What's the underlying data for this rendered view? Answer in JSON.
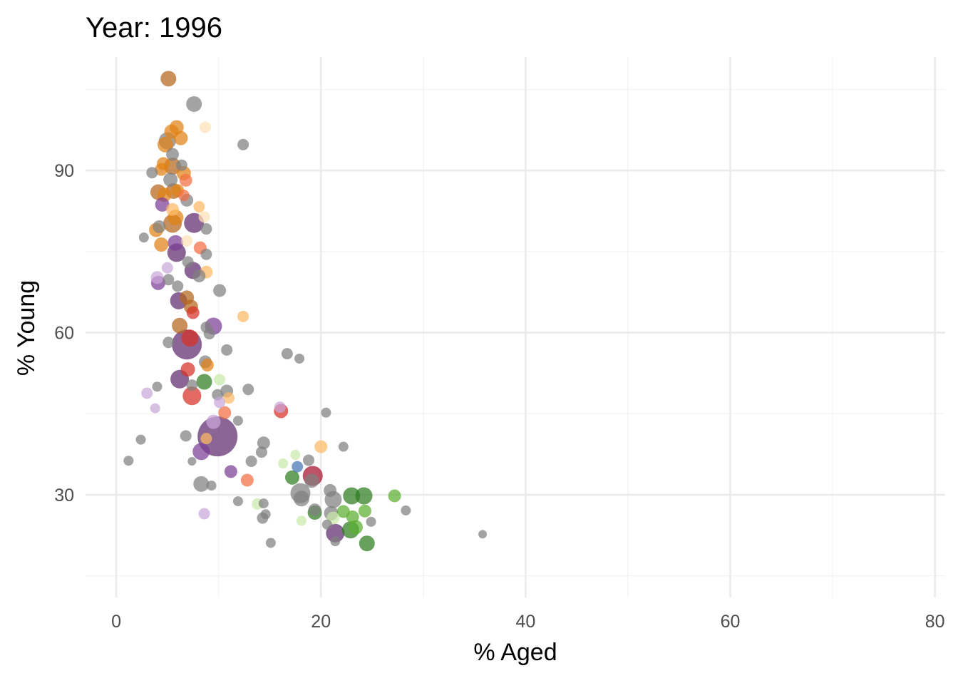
{
  "chart_data": {
    "type": "scatter",
    "title": "Year: 1996",
    "xlabel": "% Aged",
    "ylabel": "% Young",
    "xlim": [
      -3,
      81
    ],
    "ylim": [
      11,
      111
    ],
    "x_ticks": [
      0,
      20,
      40,
      60,
      80
    ],
    "x_tick_labels": [
      "0",
      "20",
      "40",
      "60",
      "80"
    ],
    "y_ticks": [
      30,
      60,
      90
    ],
    "y_tick_labels": [
      "30",
      "60",
      "90"
    ],
    "x_minor": [
      10,
      30,
      50,
      70
    ],
    "y_minor": [
      15,
      45,
      75,
      105
    ],
    "grid": true,
    "legend": "none",
    "colors": {
      "gray": "#7f7f7f",
      "dark_purple": "#5e2a6e",
      "purple": "#7b3f95",
      "light_purple": "#c9a6d9",
      "dark_orange": "#b5651d",
      "orange": "#e08214",
      "light_orange": "#fdb863",
      "pale_orange": "#fee0b6",
      "red": "#d73027",
      "crimson": "#a50f2d",
      "salmon": "#f46d43",
      "dark_green": "#2d7d1e",
      "green": "#5aae2f",
      "light_green": "#c7e9a9",
      "blue": "#4575b4"
    },
    "points": [
      {
        "x": 5.1,
        "y": 107.0,
        "size": 11,
        "color": "dark_orange"
      },
      {
        "x": 7.6,
        "y": 102.3,
        "size": 11,
        "color": "gray"
      },
      {
        "x": 8.7,
        "y": 98.0,
        "size": 8,
        "color": "pale_orange"
      },
      {
        "x": 5.9,
        "y": 98.0,
        "size": 10,
        "color": "orange"
      },
      {
        "x": 5.4,
        "y": 97.2,
        "size": 10,
        "color": "orange"
      },
      {
        "x": 6.3,
        "y": 96.0,
        "size": 10,
        "color": "orange"
      },
      {
        "x": 12.4,
        "y": 94.8,
        "size": 8,
        "color": "gray"
      },
      {
        "x": 5.0,
        "y": 95.5,
        "size": 12,
        "color": "gray"
      },
      {
        "x": 4.8,
        "y": 94.8,
        "size": 11,
        "color": "orange"
      },
      {
        "x": 5.5,
        "y": 93.0,
        "size": 9,
        "color": "gray"
      },
      {
        "x": 4.6,
        "y": 91.3,
        "size": 9,
        "color": "orange"
      },
      {
        "x": 6.4,
        "y": 91.0,
        "size": 8,
        "color": "gray"
      },
      {
        "x": 5.5,
        "y": 90.8,
        "size": 12,
        "color": "dark_orange"
      },
      {
        "x": 4.4,
        "y": 90.2,
        "size": 9,
        "color": "orange"
      },
      {
        "x": 6.6,
        "y": 89.5,
        "size": 10,
        "color": "orange"
      },
      {
        "x": 3.5,
        "y": 89.6,
        "size": 8,
        "color": "gray"
      },
      {
        "x": 5.3,
        "y": 88.3,
        "size": 10,
        "color": "gray"
      },
      {
        "x": 6.8,
        "y": 88.2,
        "size": 9,
        "color": "salmon"
      },
      {
        "x": 4.1,
        "y": 86.0,
        "size": 11,
        "color": "dark_orange"
      },
      {
        "x": 5.6,
        "y": 86.2,
        "size": 11,
        "color": "dark_orange"
      },
      {
        "x": 4.7,
        "y": 85.5,
        "size": 10,
        "color": "orange"
      },
      {
        "x": 6.0,
        "y": 86.3,
        "size": 9,
        "color": "orange"
      },
      {
        "x": 6.6,
        "y": 85.4,
        "size": 8,
        "color": "salmon"
      },
      {
        "x": 6.9,
        "y": 84.5,
        "size": 9,
        "color": "gray"
      },
      {
        "x": 4.5,
        "y": 83.7,
        "size": 10,
        "color": "purple"
      },
      {
        "x": 8.1,
        "y": 83.3,
        "size": 8,
        "color": "light_orange"
      },
      {
        "x": 5.5,
        "y": 82.8,
        "size": 9,
        "color": "light_orange"
      },
      {
        "x": 5.8,
        "y": 81.3,
        "size": 11,
        "color": "orange"
      },
      {
        "x": 8.6,
        "y": 81.4,
        "size": 8,
        "color": "pale_orange"
      },
      {
        "x": 5.5,
        "y": 80.2,
        "size": 13,
        "color": "dark_orange"
      },
      {
        "x": 7.6,
        "y": 80.3,
        "size": 14,
        "color": "dark_purple"
      },
      {
        "x": 4.2,
        "y": 79.6,
        "size": 9,
        "color": "gray"
      },
      {
        "x": 8.8,
        "y": 79.2,
        "size": 8,
        "color": "gray"
      },
      {
        "x": 3.9,
        "y": 79.0,
        "size": 10,
        "color": "orange"
      },
      {
        "x": 2.7,
        "y": 77.6,
        "size": 7,
        "color": "gray"
      },
      {
        "x": 6.9,
        "y": 77.0,
        "size": 8,
        "color": "pale_orange"
      },
      {
        "x": 4.4,
        "y": 76.3,
        "size": 10,
        "color": "orange"
      },
      {
        "x": 5.8,
        "y": 76.6,
        "size": 11,
        "color": "purple"
      },
      {
        "x": 8.2,
        "y": 75.7,
        "size": 9,
        "color": "salmon"
      },
      {
        "x": 5.9,
        "y": 74.8,
        "size": 13,
        "color": "dark_purple"
      },
      {
        "x": 8.8,
        "y": 74.5,
        "size": 8,
        "color": "gray"
      },
      {
        "x": 7.0,
        "y": 73.1,
        "size": 8,
        "color": "gray"
      },
      {
        "x": 5.0,
        "y": 72.0,
        "size": 8,
        "color": "light_purple"
      },
      {
        "x": 7.5,
        "y": 71.5,
        "size": 12,
        "color": "dark_purple"
      },
      {
        "x": 8.8,
        "y": 71.2,
        "size": 9,
        "color": "light_orange"
      },
      {
        "x": 8.1,
        "y": 70.5,
        "size": 9,
        "color": "gray"
      },
      {
        "x": 4.0,
        "y": 70.2,
        "size": 9,
        "color": "light_purple"
      },
      {
        "x": 5.1,
        "y": 69.8,
        "size": 8,
        "color": "gray"
      },
      {
        "x": 4.1,
        "y": 69.2,
        "size": 10,
        "color": "purple"
      },
      {
        "x": 6.0,
        "y": 68.6,
        "size": 8,
        "color": "gray"
      },
      {
        "x": 10.1,
        "y": 67.8,
        "size": 9,
        "color": "gray"
      },
      {
        "x": 6.9,
        "y": 66.5,
        "size": 10,
        "color": "dark_orange"
      },
      {
        "x": 6.1,
        "y": 65.9,
        "size": 12,
        "color": "dark_purple"
      },
      {
        "x": 7.3,
        "y": 64.8,
        "size": 10,
        "color": "dark_orange"
      },
      {
        "x": 7.5,
        "y": 63.7,
        "size": 9,
        "color": "red"
      },
      {
        "x": 12.4,
        "y": 63.0,
        "size": 8,
        "color": "light_orange"
      },
      {
        "x": 6.2,
        "y": 61.3,
        "size": 11,
        "color": "dark_orange"
      },
      {
        "x": 9.5,
        "y": 61.2,
        "size": 12,
        "color": "purple"
      },
      {
        "x": 8.8,
        "y": 61.0,
        "size": 8,
        "color": "gray"
      },
      {
        "x": 9.1,
        "y": 59.8,
        "size": 8,
        "color": "gray"
      },
      {
        "x": 6.9,
        "y": 57.8,
        "size": 21,
        "color": "dark_purple"
      },
      {
        "x": 7.2,
        "y": 59.0,
        "size": 12,
        "color": "red"
      },
      {
        "x": 5.1,
        "y": 58.2,
        "size": 8,
        "color": "gray"
      },
      {
        "x": 10.8,
        "y": 56.8,
        "size": 8,
        "color": "gray"
      },
      {
        "x": 16.7,
        "y": 56.1,
        "size": 8,
        "color": "gray"
      },
      {
        "x": 17.9,
        "y": 55.2,
        "size": 7,
        "color": "gray"
      },
      {
        "x": 8.7,
        "y": 54.6,
        "size": 9,
        "color": "gray"
      },
      {
        "x": 8.9,
        "y": 54.0,
        "size": 9,
        "color": "orange"
      },
      {
        "x": 7.0,
        "y": 53.2,
        "size": 10,
        "color": "red"
      },
      {
        "x": 6.2,
        "y": 51.4,
        "size": 13,
        "color": "dark_purple"
      },
      {
        "x": 8.6,
        "y": 50.9,
        "size": 11,
        "color": "dark_green"
      },
      {
        "x": 10.1,
        "y": 51.3,
        "size": 8,
        "color": "light_green"
      },
      {
        "x": 4.0,
        "y": 50.0,
        "size": 7,
        "color": "gray"
      },
      {
        "x": 7.4,
        "y": 50.3,
        "size": 8,
        "color": "gray"
      },
      {
        "x": 12.9,
        "y": 49.5,
        "size": 8,
        "color": "gray"
      },
      {
        "x": 10.8,
        "y": 49.2,
        "size": 9,
        "color": "gray"
      },
      {
        "x": 3.0,
        "y": 48.8,
        "size": 8,
        "color": "light_purple"
      },
      {
        "x": 7.4,
        "y": 48.3,
        "size": 13,
        "color": "red"
      },
      {
        "x": 9.9,
        "y": 48.5,
        "size": 8,
        "color": "gray"
      },
      {
        "x": 11.0,
        "y": 47.9,
        "size": 8,
        "color": "light_orange"
      },
      {
        "x": 10.1,
        "y": 47.1,
        "size": 8,
        "color": "light_purple"
      },
      {
        "x": 16.0,
        "y": 46.2,
        "size": 8,
        "color": "light_purple"
      },
      {
        "x": 3.8,
        "y": 46.0,
        "size": 7,
        "color": "light_purple"
      },
      {
        "x": 16.1,
        "y": 45.5,
        "size": 10,
        "color": "red"
      },
      {
        "x": 10.6,
        "y": 45.2,
        "size": 9,
        "color": "salmon"
      },
      {
        "x": 20.5,
        "y": 45.2,
        "size": 7,
        "color": "gray"
      },
      {
        "x": 11.9,
        "y": 43.7,
        "size": 7,
        "color": "gray"
      },
      {
        "x": 9.9,
        "y": 40.8,
        "size": 28,
        "color": "dark_purple"
      },
      {
        "x": 9.5,
        "y": 43.5,
        "size": 10,
        "color": "light_purple"
      },
      {
        "x": 6.8,
        "y": 40.9,
        "size": 8,
        "color": "gray"
      },
      {
        "x": 8.8,
        "y": 40.4,
        "size": 8,
        "color": "light_orange"
      },
      {
        "x": 2.4,
        "y": 40.2,
        "size": 7,
        "color": "gray"
      },
      {
        "x": 14.4,
        "y": 39.6,
        "size": 9,
        "color": "gray"
      },
      {
        "x": 22.2,
        "y": 38.9,
        "size": 7,
        "color": "gray"
      },
      {
        "x": 20.0,
        "y": 38.9,
        "size": 9,
        "color": "light_orange"
      },
      {
        "x": 8.3,
        "y": 38.0,
        "size": 12,
        "color": "purple"
      },
      {
        "x": 14.2,
        "y": 37.9,
        "size": 8,
        "color": "gray"
      },
      {
        "x": 17.5,
        "y": 37.4,
        "size": 7,
        "color": "light_green"
      },
      {
        "x": 1.2,
        "y": 36.3,
        "size": 7,
        "color": "gray"
      },
      {
        "x": 7.4,
        "y": 36.2,
        "size": 6,
        "color": "gray"
      },
      {
        "x": 13.2,
        "y": 36.2,
        "size": 8,
        "color": "gray"
      },
      {
        "x": 18.8,
        "y": 36.4,
        "size": 8,
        "color": "gray"
      },
      {
        "x": 16.3,
        "y": 35.8,
        "size": 7,
        "color": "light_green"
      },
      {
        "x": 17.7,
        "y": 35.2,
        "size": 8,
        "color": "blue"
      },
      {
        "x": 11.2,
        "y": 34.3,
        "size": 9,
        "color": "purple"
      },
      {
        "x": 12.8,
        "y": 32.7,
        "size": 9,
        "color": "salmon"
      },
      {
        "x": 17.2,
        "y": 33.2,
        "size": 10,
        "color": "dark_green"
      },
      {
        "x": 19.2,
        "y": 33.5,
        "size": 14,
        "color": "crimson"
      },
      {
        "x": 19.1,
        "y": 32.6,
        "size": 10,
        "color": "gray"
      },
      {
        "x": 8.3,
        "y": 32.0,
        "size": 11,
        "color": "gray"
      },
      {
        "x": 9.3,
        "y": 31.7,
        "size": 7,
        "color": "gray"
      },
      {
        "x": 18.0,
        "y": 30.3,
        "size": 14,
        "color": "gray"
      },
      {
        "x": 20.9,
        "y": 30.8,
        "size": 9,
        "color": "gray"
      },
      {
        "x": 23.0,
        "y": 29.8,
        "size": 12,
        "color": "dark_green"
      },
      {
        "x": 24.2,
        "y": 29.8,
        "size": 12,
        "color": "dark_green"
      },
      {
        "x": 27.2,
        "y": 29.8,
        "size": 9,
        "color": "green"
      },
      {
        "x": 21.2,
        "y": 29.1,
        "size": 12,
        "color": "gray"
      },
      {
        "x": 18.1,
        "y": 29.3,
        "size": 11,
        "color": "gray"
      },
      {
        "x": 11.9,
        "y": 28.8,
        "size": 7,
        "color": "gray"
      },
      {
        "x": 13.8,
        "y": 28.3,
        "size": 8,
        "color": "light_green"
      },
      {
        "x": 14.4,
        "y": 28.4,
        "size": 7,
        "color": "gray"
      },
      {
        "x": 19.4,
        "y": 27.2,
        "size": 9,
        "color": "gray"
      },
      {
        "x": 28.3,
        "y": 27.1,
        "size": 7,
        "color": "gray"
      },
      {
        "x": 24.3,
        "y": 27.0,
        "size": 9,
        "color": "green"
      },
      {
        "x": 22.2,
        "y": 26.9,
        "size": 9,
        "color": "green"
      },
      {
        "x": 21.0,
        "y": 26.6,
        "size": 10,
        "color": "gray"
      },
      {
        "x": 19.4,
        "y": 26.7,
        "size": 10,
        "color": "dark_green"
      },
      {
        "x": 8.6,
        "y": 26.5,
        "size": 8,
        "color": "light_purple"
      },
      {
        "x": 14.6,
        "y": 26.4,
        "size": 7,
        "color": "gray"
      },
      {
        "x": 14.3,
        "y": 25.7,
        "size": 8,
        "color": "gray"
      },
      {
        "x": 21.2,
        "y": 25.7,
        "size": 9,
        "color": "light_green"
      },
      {
        "x": 23.1,
        "y": 25.9,
        "size": 9,
        "color": "green"
      },
      {
        "x": 18.1,
        "y": 25.2,
        "size": 7,
        "color": "light_green"
      },
      {
        "x": 24.9,
        "y": 25.0,
        "size": 7,
        "color": "gray"
      },
      {
        "x": 20.6,
        "y": 24.5,
        "size": 7,
        "color": "gray"
      },
      {
        "x": 23.4,
        "y": 24.0,
        "size": 10,
        "color": "green"
      },
      {
        "x": 22.9,
        "y": 23.5,
        "size": 12,
        "color": "dark_green"
      },
      {
        "x": 21.4,
        "y": 22.9,
        "size": 13,
        "color": "dark_purple"
      },
      {
        "x": 35.8,
        "y": 22.7,
        "size": 6,
        "color": "gray"
      },
      {
        "x": 21.4,
        "y": 21.4,
        "size": 7,
        "color": "gray"
      },
      {
        "x": 15.1,
        "y": 21.1,
        "size": 7,
        "color": "gray"
      },
      {
        "x": 24.5,
        "y": 21.0,
        "size": 11,
        "color": "dark_green"
      }
    ]
  }
}
